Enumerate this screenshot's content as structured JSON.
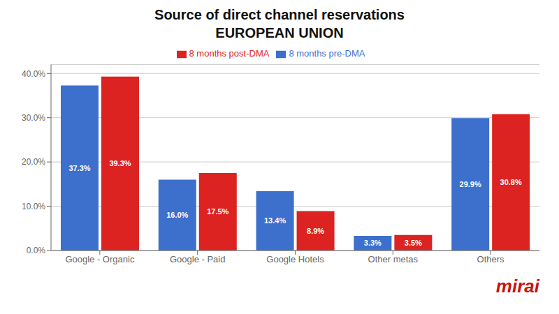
{
  "chart_data": {
    "type": "bar",
    "title": "Source of direct channel reservations",
    "subtitle": "EUROPEAN UNION",
    "categories": [
      "Google - Organic",
      "Google - Paid",
      "Google Hotels",
      "Other metas",
      "Others"
    ],
    "series": [
      {
        "name": "8 months pre-DMA",
        "color": "#3D6FCC",
        "values": [
          37.3,
          16.0,
          13.4,
          3.3,
          29.9
        ],
        "value_labels": [
          "37.3%",
          "16.0%",
          "13.4%",
          "3.3%",
          "29.9%"
        ]
      },
      {
        "name": "8 months post-DMA",
        "color": "#DD2222",
        "values": [
          39.3,
          17.5,
          8.9,
          3.5,
          30.8
        ],
        "value_labels": [
          "39.3%",
          "17.5%",
          "8.9%",
          "3.5%",
          "30.8%"
        ]
      }
    ],
    "ylim": [
      0,
      42
    ],
    "yticks": [
      {
        "value": 0,
        "label": "0.0%"
      },
      {
        "value": 10,
        "label": "10.0%"
      },
      {
        "value": 20,
        "label": "20.0%"
      },
      {
        "value": 30,
        "label": "30.0%"
      },
      {
        "value": 40,
        "label": "40.0%"
      }
    ],
    "grid": true,
    "legend": "top",
    "data_labels": true,
    "annotations": [
      {
        "text": "mirai",
        "color": "#CC1111"
      }
    ]
  }
}
